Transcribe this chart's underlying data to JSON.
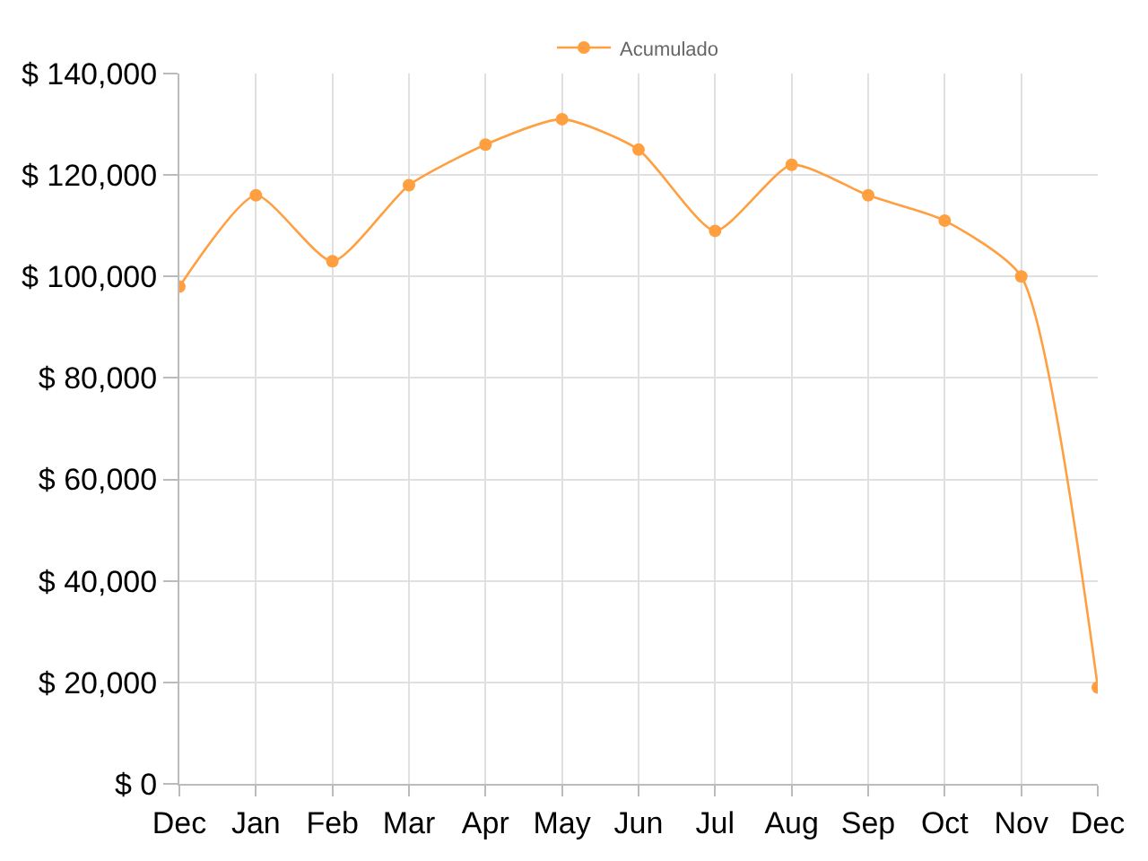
{
  "chart_data": {
    "type": "line",
    "categories": [
      "Dec",
      "Jan",
      "Feb",
      "Mar",
      "Apr",
      "May",
      "Jun",
      "Jul",
      "Aug",
      "Sep",
      "Oct",
      "Nov",
      "Dec"
    ],
    "series": [
      {
        "name": "Acumulado",
        "color": "#ff9f40",
        "values": [
          98000,
          116000,
          103000,
          118000,
          126000,
          131000,
          125000,
          109000,
          122000,
          116000,
          111000,
          100000,
          19000
        ]
      }
    ],
    "ylim": [
      0,
      140000
    ],
    "yticks": [
      {
        "value": 0,
        "label": "$ 0"
      },
      {
        "value": 20000,
        "label": "$ 20,000"
      },
      {
        "value": 40000,
        "label": "$ 40,000"
      },
      {
        "value": 60000,
        "label": "$ 60,000"
      },
      {
        "value": 80000,
        "label": "$ 80,000"
      },
      {
        "value": 100000,
        "label": "$ 100,000"
      },
      {
        "value": 120000,
        "label": "$ 120,000"
      },
      {
        "value": 140000,
        "label": "$ 140,000"
      }
    ],
    "grid": true,
    "legend": "top",
    "marker": "circle",
    "line_style": "solid"
  }
}
